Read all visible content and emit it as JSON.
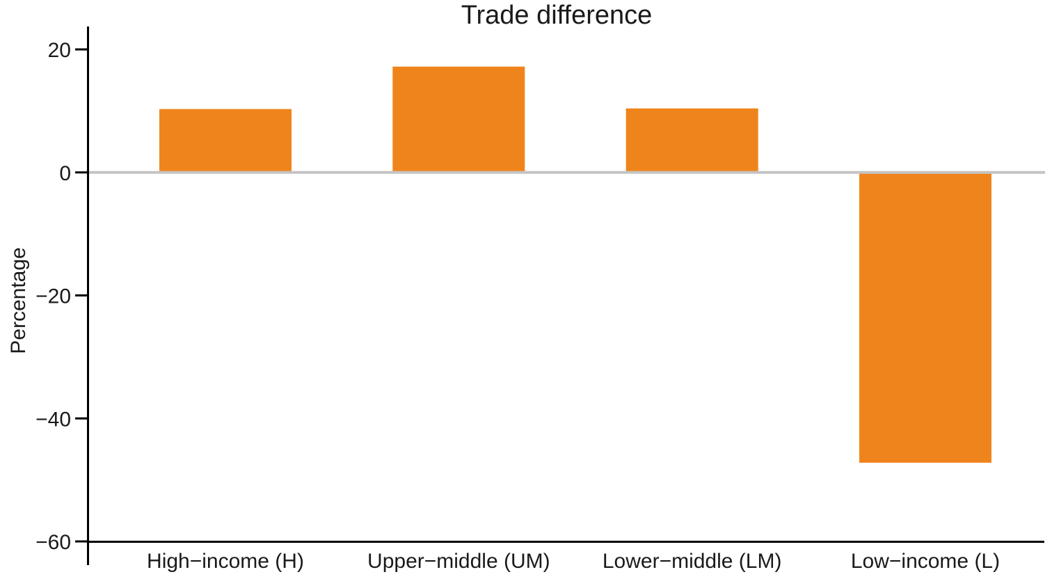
{
  "chart_data": {
    "type": "bar",
    "title": "Trade difference",
    "xlabel": "",
    "ylabel": "Percentage",
    "categories": [
      "High−income (H)",
      "Upper−middle (UM)",
      "Lower−middle (LM)",
      "Low−income (L)"
    ],
    "values": [
      10.3,
      17.2,
      10.4,
      -47.2
    ],
    "ylim": [
      -60,
      20
    ],
    "yticks": [
      20,
      0,
      -20,
      -40,
      -60
    ],
    "ytick_labels": [
      "20",
      "0",
      "−20",
      "−40",
      "−60"
    ],
    "grid": false,
    "legend": false,
    "bar_color": "#F0841C",
    "zero_line_color": "#C4C4C4",
    "axis_color": "#000000"
  }
}
